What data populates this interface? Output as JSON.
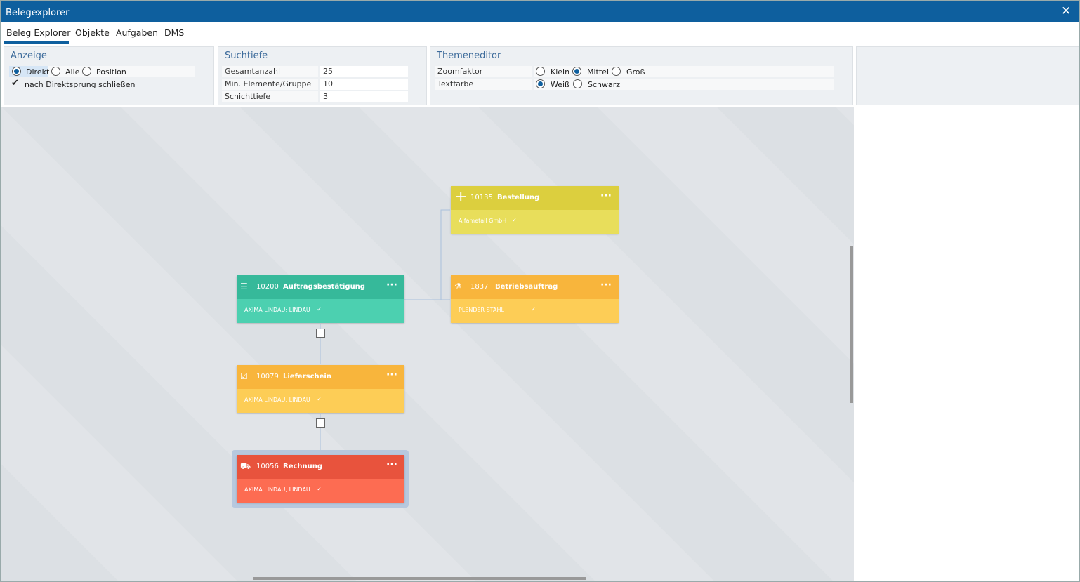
{
  "window": {
    "title": "Belegexplorer"
  },
  "tabs": {
    "items": [
      "Beleg Explorer",
      "Objekte",
      "Aufgaben",
      "DMS"
    ],
    "active": 0
  },
  "anzeige": {
    "title": "Anzeige",
    "options": [
      "Direkt",
      "Alle",
      "Position"
    ],
    "selected": 0,
    "checkbox": "nach Direktsprung schließen",
    "checked": true
  },
  "suchtiefe": {
    "title": "Suchtiefe",
    "rows": [
      [
        "Gesamtanzahl",
        25
      ],
      [
        "Min. Elemente/Gruppe",
        10
      ],
      [
        "Schichttiefe",
        3
      ]
    ]
  },
  "themeneditor": {
    "title": "Themeneditor",
    "rows": [
      {
        "label": "Zoomfaktor",
        "options": [
          "Klein",
          "Mittel",
          "Groß"
        ],
        "selected": 1
      },
      {
        "label": "Textfarbe",
        "options": [
          "Weiß",
          "Schwarz"
        ],
        "selected": 0
      }
    ]
  },
  "nodes": [
    {
      "number": "10135",
      "type": "Bestellung",
      "company": "Alfametall GmbH",
      "header_color": "#dccf3e",
      "body_color": "#e8de5b"
    },
    {
      "number": "1837",
      "type": "Betriebsauftrag",
      "company": "PLENDER STAHL",
      "header_color": "#f8b53c",
      "body_color": "#fdcd56"
    },
    {
      "number": "10200",
      "type": "Auftragsbestätigung",
      "company": "AXIMA LINDAU; LINDAU",
      "header_color": "#36b99a",
      "body_color": "#4cd0b0"
    },
    {
      "number": "10079",
      "type": "Lieferschein",
      "company": "AXIMA LINDAU; LINDAU",
      "header_color": "#f8b53c",
      "body_color": "#fdcd56"
    },
    {
      "number": "10056",
      "type": "Rechnung",
      "company": "AXIMA LINDAU; LINDAU",
      "header_color": "#e8533d",
      "body_color": "#fd6c52"
    }
  ]
}
